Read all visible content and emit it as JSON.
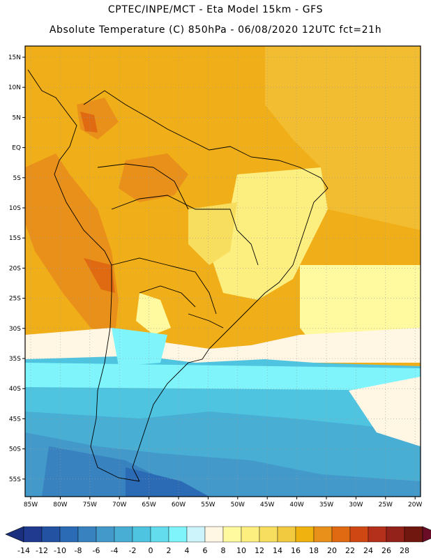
{
  "header": {
    "line1": "CPTEC/INPE/MCT -  Eta Model 15km - GFS",
    "line2": "Absolute Temperature (C) 850hPa - 06/08/2020 12UTC fct=21h"
  },
  "map": {
    "lat_labels": [
      "15N",
      "10N",
      "5N",
      "EQ",
      "5S",
      "10S",
      "15S",
      "20S",
      "25S",
      "30S",
      "35S",
      "40S",
      "45S",
      "50S",
      "55S"
    ],
    "lon_labels": [
      "85W",
      "80W",
      "75W",
      "70W",
      "65W",
      "60W",
      "55W",
      "50W",
      "45W",
      "40W",
      "35W",
      "30W",
      "25W",
      "20W"
    ],
    "gridlines": "dotted"
  },
  "colorbar": {
    "ticks": [
      "-14",
      "-12",
      "-10",
      "-8",
      "-6",
      "-4",
      "-2",
      "0",
      "2",
      "4",
      "6",
      "8",
      "10",
      "12",
      "14",
      "16",
      "18",
      "20",
      "22",
      "24",
      "26",
      "28"
    ],
    "colors": [
      "#1f3a8f",
      "#2352a3",
      "#2b6ab4",
      "#3782bf",
      "#4399c9",
      "#48aed4",
      "#4fc4e0",
      "#63dced",
      "#7ff5fb",
      "#cdf3fb",
      "#fff6e3",
      "#fffaa0",
      "#fcee7f",
      "#f8de5e",
      "#f2ca3f",
      "#efb20e",
      "#e9901a",
      "#e06a12",
      "#cf4814",
      "#b4301a",
      "#92221a",
      "#701810"
    ],
    "left_extend_color": "#1a2f7d",
    "right_extend_color": "#6b0c27"
  }
}
